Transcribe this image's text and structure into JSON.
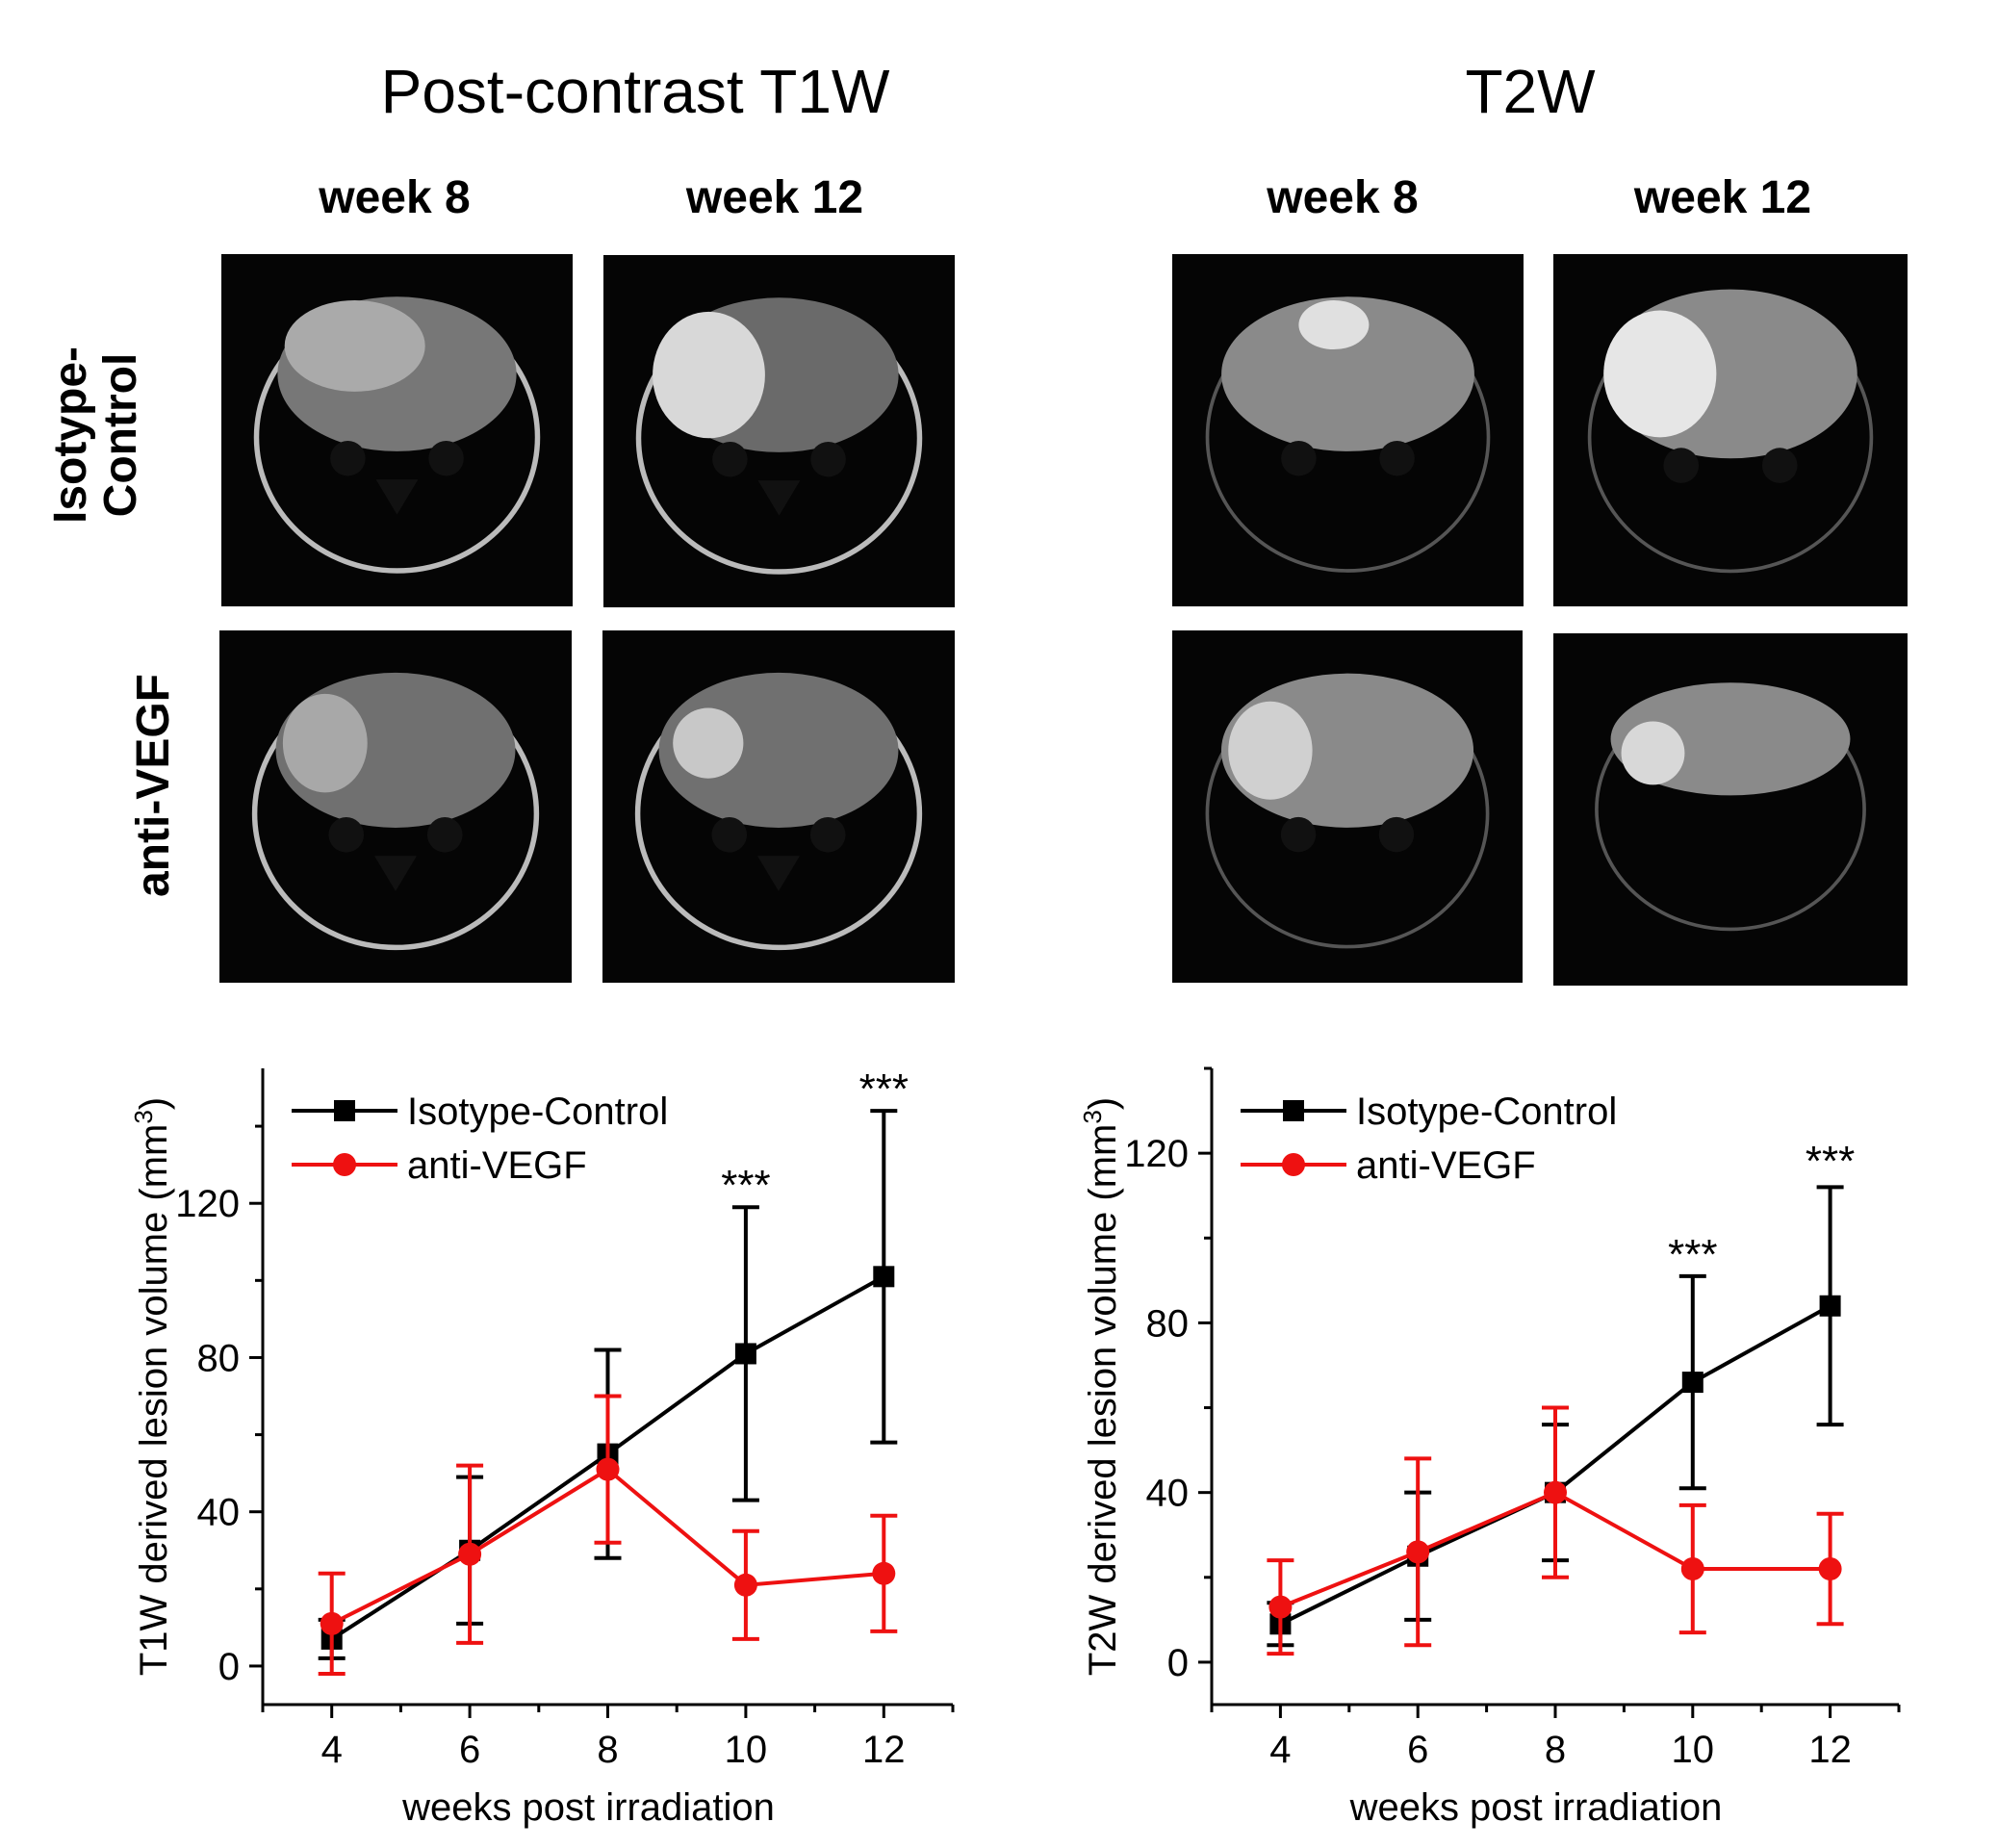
{
  "panels": [
    {
      "title": "Post-contrast T1W",
      "columns": [
        "week 8",
        "week 12"
      ],
      "rows": [
        "Isotype-\nControl",
        "anti-VEGF"
      ]
    },
    {
      "title": "T2W",
      "columns": [
        "week 8",
        "week 12"
      ]
    }
  ],
  "row_labels": {
    "isotype_line1": "Isotype-",
    "isotype_line2": "Control",
    "antivegf": "anti-VEGF"
  },
  "colors": {
    "isotype": "#000000",
    "antivegf": "#ee1111",
    "image_bg": "#050505"
  },
  "chart_data": [
    {
      "type": "line",
      "title": "",
      "xlabel": "weeks post irradiation",
      "ylabel": "T1W derived lesion volume (mm",
      "ylabel_sup": "3",
      "ylabel_close": ")",
      "xlim": [
        3,
        13
      ],
      "ylim": [
        -10,
        155
      ],
      "xticks": [
        "4",
        "6",
        "8",
        "10",
        "12"
      ],
      "yticks": [
        "0",
        "40",
        "80",
        "120"
      ],
      "x": [
        4,
        6,
        8,
        10,
        12
      ],
      "series": [
        {
          "name": "Isotype-Control",
          "marker": "square",
          "color": "#000000",
          "values": [
            7,
            30,
            55,
            81,
            101
          ],
          "errors": [
            5,
            19,
            27,
            38,
            43
          ]
        },
        {
          "name": "anti-VEGF",
          "marker": "circle",
          "color": "#ee1111",
          "values": [
            11,
            29,
            51,
            21,
            24
          ],
          "errors": [
            13,
            23,
            19,
            14,
            15
          ]
        }
      ],
      "annotations": [
        {
          "x": 10,
          "y": 119,
          "text": "***"
        },
        {
          "x": 12,
          "y": 144,
          "text": "***"
        }
      ],
      "legend_placement": "top-left"
    },
    {
      "type": "line",
      "title": "",
      "xlabel": "weeks post irradiation",
      "ylabel": "T2W derived lesion volume (mm",
      "ylabel_sup": "3",
      "ylabel_close": ")",
      "xlim": [
        3,
        13
      ],
      "ylim": [
        -10,
        140
      ],
      "xticks": [
        "4",
        "6",
        "8",
        "10",
        "12"
      ],
      "yticks": [
        "0",
        "40",
        "80",
        "120"
      ],
      "x": [
        4,
        6,
        8,
        10,
        12
      ],
      "series": [
        {
          "name": "Isotype-Control",
          "marker": "square",
          "color": "#000000",
          "values": [
            9,
            25,
            40,
            66,
            84
          ],
          "errors": [
            5,
            15,
            16,
            25,
            28
          ]
        },
        {
          "name": "anti-VEGF",
          "marker": "circle",
          "color": "#ee1111",
          "values": [
            13,
            26,
            40,
            22,
            22
          ],
          "errors": [
            11,
            22,
            20,
            15,
            13
          ]
        }
      ],
      "annotations": [
        {
          "x": 10,
          "y": 91,
          "text": "***"
        },
        {
          "x": 12,
          "y": 113,
          "text": "***"
        }
      ],
      "legend_placement": "top-left"
    }
  ]
}
